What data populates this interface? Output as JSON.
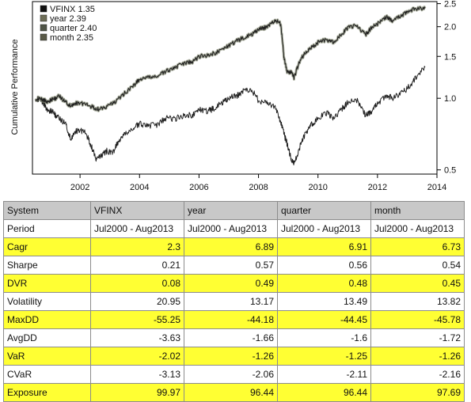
{
  "colors": {
    "background": "#ffffff",
    "series_line": "#1f1f1f",
    "band": "#8a8f7a",
    "highlight_row": "#ffff33",
    "header_row": "#c8c8c8",
    "grid_border": "#8c8c8c"
  },
  "chart_data": {
    "type": "line",
    "title": "",
    "xlabel": "",
    "ylabel": "Cumulative Performance",
    "y_scale": "log",
    "ylim": [
      0.48,
      2.55
    ],
    "xlim": [
      2000.4,
      2014.0
    ],
    "x_ticks": [
      2002,
      2004,
      2006,
      2008,
      2010,
      2012,
      2014
    ],
    "y_ticks": [
      0.5,
      1.0,
      1.5,
      2.0,
      2.5
    ],
    "y_tick_labels": [
      "0.5",
      "1.0",
      "1.5",
      "2.0",
      "2.5"
    ],
    "y_axis_side": "right",
    "legend_position": "top-left",
    "legend": [
      "VFINX 1.35",
      "year 2.39",
      "quarter 2.40",
      "month 2.35"
    ],
    "legend_colors": [
      "#111111",
      "#6e6e58",
      "#4f5446",
      "#5a5a48"
    ],
    "series": [
      {
        "name": "VFINX 1.35",
        "x": [
          2000.5,
          2000.7,
          2000.9,
          2001.1,
          2001.3,
          2001.5,
          2001.7,
          2001.8,
          2002.0,
          2002.2,
          2002.4,
          2002.55,
          2002.75,
          2002.9,
          2003.1,
          2003.3,
          2003.5,
          2003.8,
          2004.0,
          2004.3,
          2004.6,
          2004.9,
          2005.2,
          2005.5,
          2005.8,
          2006.0,
          2006.3,
          2006.5,
          2006.8,
          2007.0,
          2007.3,
          2007.5,
          2007.8,
          2008.0,
          2008.3,
          2008.6,
          2008.8,
          2008.9,
          2009.0,
          2009.1,
          2009.2,
          2009.4,
          2009.6,
          2009.8,
          2010.0,
          2010.3,
          2010.5,
          2010.8,
          2011.0,
          2011.3,
          2011.6,
          2011.8,
          2012.0,
          2012.3,
          2012.5,
          2012.8,
          2013.0,
          2013.3,
          2013.6
        ],
        "values": [
          1.0,
          0.98,
          0.9,
          0.87,
          0.82,
          0.79,
          0.66,
          0.72,
          0.74,
          0.71,
          0.62,
          0.55,
          0.58,
          0.6,
          0.59,
          0.66,
          0.7,
          0.75,
          0.78,
          0.77,
          0.77,
          0.83,
          0.82,
          0.85,
          0.85,
          0.9,
          0.88,
          0.91,
          0.96,
          1.0,
          1.03,
          1.08,
          1.07,
          0.98,
          0.96,
          0.9,
          0.75,
          0.68,
          0.62,
          0.55,
          0.53,
          0.63,
          0.72,
          0.78,
          0.82,
          0.87,
          0.82,
          0.9,
          0.96,
          0.98,
          0.85,
          0.88,
          0.95,
          1.03,
          1.0,
          1.05,
          1.1,
          1.22,
          1.35
        ]
      },
      {
        "name": "year 2.39",
        "x": [
          2000.5,
          2000.7,
          2000.9,
          2001.1,
          2001.3,
          2001.5,
          2001.7,
          2001.8,
          2002.0,
          2002.3,
          2002.6,
          2002.9,
          2003.2,
          2003.5,
          2003.8,
          2004.0,
          2004.3,
          2004.6,
          2004.9,
          2005.2,
          2005.5,
          2005.8,
          2006.0,
          2006.3,
          2006.6,
          2006.9,
          2007.2,
          2007.5,
          2007.8,
          2008.0,
          2008.2,
          2008.4,
          2008.6,
          2008.75,
          2008.85,
          2008.95,
          2009.1,
          2009.2,
          2009.4,
          2009.6,
          2009.8,
          2010.0,
          2010.3,
          2010.5,
          2010.8,
          2011.0,
          2011.3,
          2011.6,
          2011.8,
          2012.0,
          2012.3,
          2012.5,
          2012.8,
          2013.0,
          2013.3,
          2013.6
        ],
        "values": [
          1.0,
          0.99,
          0.97,
          0.99,
          1.02,
          0.97,
          0.92,
          0.95,
          0.96,
          0.93,
          0.9,
          0.92,
          0.97,
          1.05,
          1.13,
          1.2,
          1.22,
          1.24,
          1.3,
          1.35,
          1.4,
          1.43,
          1.5,
          1.52,
          1.56,
          1.64,
          1.72,
          1.8,
          1.86,
          1.95,
          1.98,
          2.05,
          2.12,
          2.05,
          1.5,
          1.3,
          1.28,
          1.22,
          1.45,
          1.56,
          1.64,
          1.72,
          1.76,
          1.72,
          1.85,
          1.98,
          2.02,
          1.85,
          1.98,
          2.05,
          2.2,
          2.12,
          2.22,
          2.32,
          2.38,
          2.39
        ]
      }
    ]
  },
  "table": {
    "headers": [
      "System",
      "VFINX",
      "year",
      "quarter",
      "month"
    ],
    "period": {
      "label": "Period",
      "values": [
        "Jul2000 - Aug2013",
        "Jul2000 - Aug2013",
        "Jul2000 - Aug2013",
        "Jul2000 - Aug2013"
      ]
    },
    "rows": [
      {
        "label": "Cagr",
        "values": [
          "2.3",
          "6.89",
          "6.91",
          "6.73"
        ],
        "highlight": true
      },
      {
        "label": "Sharpe",
        "values": [
          "0.21",
          "0.57",
          "0.56",
          "0.54"
        ],
        "highlight": false
      },
      {
        "label": "DVR",
        "values": [
          "0.08",
          "0.49",
          "0.48",
          "0.45"
        ],
        "highlight": true
      },
      {
        "label": "Volatility",
        "values": [
          "20.95",
          "13.17",
          "13.49",
          "13.82"
        ],
        "highlight": false
      },
      {
        "label": "MaxDD",
        "values": [
          "-55.25",
          "-44.18",
          "-44.45",
          "-45.78"
        ],
        "highlight": true
      },
      {
        "label": "AvgDD",
        "values": [
          "-3.63",
          "-1.66",
          "-1.6",
          "-1.72"
        ],
        "highlight": false
      },
      {
        "label": "VaR",
        "values": [
          "-2.02",
          "-1.26",
          "-1.25",
          "-1.26"
        ],
        "highlight": true
      },
      {
        "label": "CVaR",
        "values": [
          "-3.13",
          "-2.06",
          "-2.11",
          "-2.16"
        ],
        "highlight": false
      },
      {
        "label": "Exposure",
        "values": [
          "99.97",
          "96.44",
          "96.44",
          "97.69"
        ],
        "highlight": true
      }
    ]
  }
}
